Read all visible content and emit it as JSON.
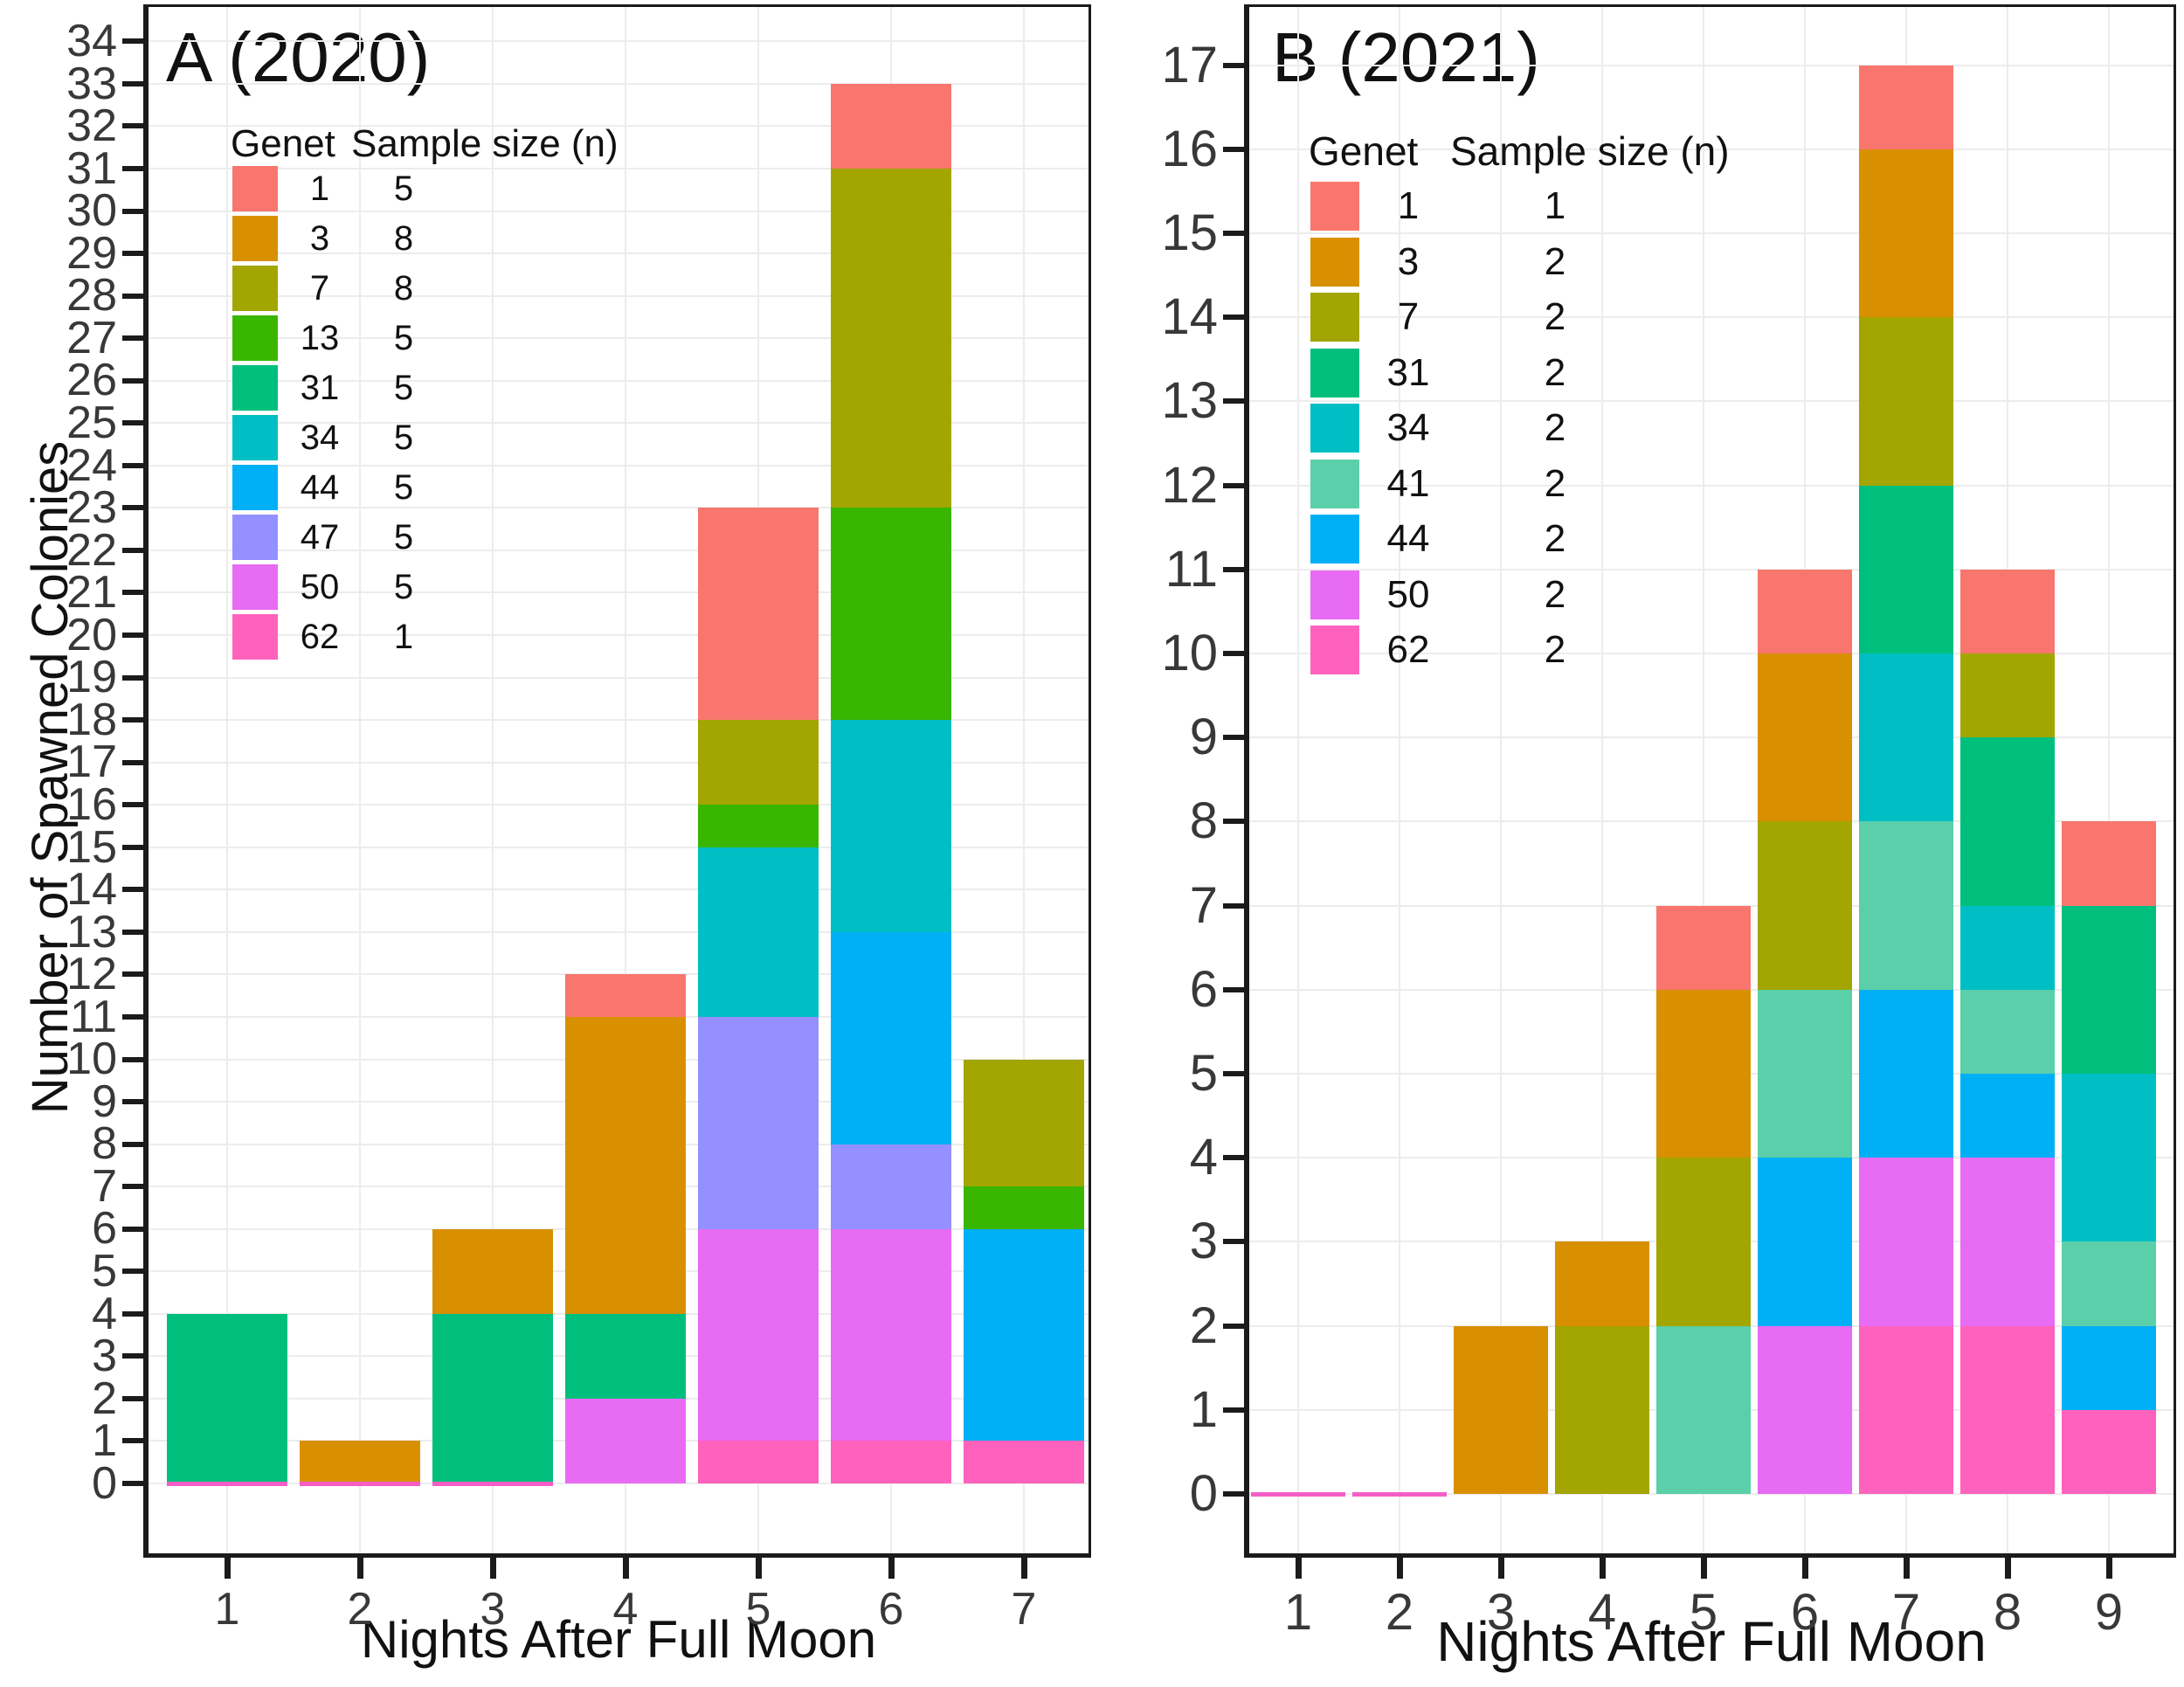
{
  "figure": {
    "y_axis_title": "Number of Spawned Colonies",
    "x_axis_title": "Nights After Full Moon"
  },
  "colors": {
    "background": "#FFFFFF",
    "axis": "#1B1B1B",
    "grid": "#ECECEC",
    "tick_label": "#383838",
    "zero_bar_line": "#F55EC6",
    "genet": {
      "1": "#F8766D",
      "3": "#D89000",
      "7": "#A3A500",
      "13": "#39B600",
      "31": "#00BF7D",
      "34": "#00BFC4",
      "41": "#5BCFA9",
      "44": "#00B0F6",
      "47": "#9590FF",
      "50": "#E76BF3",
      "62": "#FF62BC"
    }
  },
  "chart_data": [
    {
      "type": "bar",
      "stacked": true,
      "title": "A (2020)",
      "xlabel": "Nights After Full Moon",
      "ylabel": "Number of Spawned Colonies",
      "x_categories": [
        "1",
        "2",
        "3",
        "4",
        "5",
        "6",
        "7"
      ],
      "ylim": [
        0,
        34
      ],
      "ytick_step": 1,
      "grid": true,
      "legend_position": "inside top-left",
      "legend_header": {
        "genet": "Genet",
        "sample_size": "Sample size (n)"
      },
      "legend": [
        {
          "genet": "1",
          "n": "5"
        },
        {
          "genet": "3",
          "n": "8"
        },
        {
          "genet": "7",
          "n": "8"
        },
        {
          "genet": "13",
          "n": "5"
        },
        {
          "genet": "31",
          "n": "5"
        },
        {
          "genet": "34",
          "n": "5"
        },
        {
          "genet": "44",
          "n": "5"
        },
        {
          "genet": "47",
          "n": "5"
        },
        {
          "genet": "50",
          "n": "5"
        },
        {
          "genet": "62",
          "n": "1"
        }
      ],
      "stack_order_bottom_to_top": [
        "62",
        "50",
        "47",
        "44",
        "34",
        "31",
        "13",
        "7",
        "3",
        "1"
      ],
      "totals": [
        4,
        1,
        6,
        12,
        23,
        33,
        10
      ],
      "bars": [
        {
          "night": "1",
          "total": 4,
          "zero_height_outline": true,
          "segments": [
            {
              "genet": "31",
              "value": 4
            }
          ]
        },
        {
          "night": "2",
          "total": 1,
          "zero_height_outline": true,
          "segments": [
            {
              "genet": "3",
              "value": 1
            }
          ]
        },
        {
          "night": "3",
          "total": 6,
          "zero_height_outline": true,
          "segments": [
            {
              "genet": "31",
              "value": 4
            },
            {
              "genet": "3",
              "value": 2
            }
          ]
        },
        {
          "night": "4",
          "total": 12,
          "zero_height_outline": false,
          "segments": [
            {
              "genet": "50",
              "value": 2
            },
            {
              "genet": "31",
              "value": 2
            },
            {
              "genet": "3",
              "value": 7
            },
            {
              "genet": "1",
              "value": 1
            }
          ]
        },
        {
          "night": "5",
          "total": 23,
          "zero_height_outline": false,
          "segments": [
            {
              "genet": "62",
              "value": 1
            },
            {
              "genet": "50",
              "value": 5
            },
            {
              "genet": "47",
              "value": 5
            },
            {
              "genet": "34",
              "value": 4
            },
            {
              "genet": "13",
              "value": 1
            },
            {
              "genet": "7",
              "value": 2
            },
            {
              "genet": "1",
              "value": 5
            }
          ]
        },
        {
          "night": "6",
          "total": 33,
          "zero_height_outline": false,
          "segments": [
            {
              "genet": "62",
              "value": 1
            },
            {
              "genet": "50",
              "value": 5
            },
            {
              "genet": "47",
              "value": 2
            },
            {
              "genet": "44",
              "value": 5
            },
            {
              "genet": "34",
              "value": 5
            },
            {
              "genet": "13",
              "value": 5
            },
            {
              "genet": "7",
              "value": 8
            },
            {
              "genet": "1",
              "value": 2
            }
          ]
        },
        {
          "night": "7",
          "total": 10,
          "zero_height_outline": false,
          "segments": [
            {
              "genet": "62",
              "value": 1
            },
            {
              "genet": "44",
              "value": 5
            },
            {
              "genet": "13",
              "value": 1
            },
            {
              "genet": "7",
              "value": 3
            }
          ]
        }
      ]
    },
    {
      "type": "bar",
      "stacked": true,
      "title": "B (2021)",
      "xlabel": "Nights After Full Moon",
      "ylabel": "",
      "x_categories": [
        "1",
        "2",
        "3",
        "4",
        "5",
        "6",
        "7",
        "8",
        "9"
      ],
      "ylim": [
        0,
        17
      ],
      "ytick_step": 1,
      "grid": true,
      "legend_position": "inside top-left",
      "legend_header": {
        "genet": "Genet",
        "sample_size": "Sample size (n)"
      },
      "legend": [
        {
          "genet": "1",
          "n": "1"
        },
        {
          "genet": "3",
          "n": "2"
        },
        {
          "genet": "7",
          "n": "2"
        },
        {
          "genet": "31",
          "n": "2"
        },
        {
          "genet": "34",
          "n": "2"
        },
        {
          "genet": "41",
          "n": "2"
        },
        {
          "genet": "44",
          "n": "2"
        },
        {
          "genet": "50",
          "n": "2"
        },
        {
          "genet": "62",
          "n": "2"
        }
      ],
      "stack_order_bottom_to_top": [
        "62",
        "50",
        "44",
        "41",
        "34",
        "31",
        "7",
        "3",
        "1"
      ],
      "totals": [
        0,
        0,
        2,
        3,
        7,
        11,
        17,
        11,
        8
      ],
      "bars": [
        {
          "night": "1",
          "total": 0,
          "zero_height_outline": true,
          "segments": []
        },
        {
          "night": "2",
          "total": 0,
          "zero_height_outline": true,
          "segments": []
        },
        {
          "night": "3",
          "total": 2,
          "zero_height_outline": false,
          "segments": [
            {
              "genet": "3",
              "value": 2
            }
          ]
        },
        {
          "night": "4",
          "total": 3,
          "zero_height_outline": false,
          "segments": [
            {
              "genet": "7",
              "value": 2
            },
            {
              "genet": "3",
              "value": 1
            }
          ]
        },
        {
          "night": "5",
          "total": 7,
          "zero_height_outline": false,
          "segments": [
            {
              "genet": "41",
              "value": 2
            },
            {
              "genet": "7",
              "value": 2
            },
            {
              "genet": "3",
              "value": 2
            },
            {
              "genet": "1",
              "value": 1
            }
          ]
        },
        {
          "night": "6",
          "total": 11,
          "zero_height_outline": false,
          "segments": [
            {
              "genet": "50",
              "value": 2
            },
            {
              "genet": "44",
              "value": 2
            },
            {
              "genet": "41",
              "value": 2
            },
            {
              "genet": "7",
              "value": 2
            },
            {
              "genet": "3",
              "value": 2
            },
            {
              "genet": "1",
              "value": 1
            }
          ]
        },
        {
          "night": "7",
          "total": 17,
          "zero_height_outline": false,
          "segments": [
            {
              "genet": "62",
              "value": 2
            },
            {
              "genet": "50",
              "value": 2
            },
            {
              "genet": "44",
              "value": 2
            },
            {
              "genet": "41",
              "value": 2
            },
            {
              "genet": "34",
              "value": 2
            },
            {
              "genet": "31",
              "value": 2
            },
            {
              "genet": "7",
              "value": 2
            },
            {
              "genet": "3",
              "value": 2
            },
            {
              "genet": "1",
              "value": 1
            }
          ]
        },
        {
          "night": "8",
          "total": 11,
          "zero_height_outline": false,
          "segments": [
            {
              "genet": "62",
              "value": 2
            },
            {
              "genet": "50",
              "value": 2
            },
            {
              "genet": "44",
              "value": 1
            },
            {
              "genet": "41",
              "value": 1
            },
            {
              "genet": "34",
              "value": 1
            },
            {
              "genet": "31",
              "value": 2
            },
            {
              "genet": "7",
              "value": 1
            },
            {
              "genet": "1",
              "value": 1
            }
          ]
        },
        {
          "night": "9",
          "total": 8,
          "zero_height_outline": false,
          "segments": [
            {
              "genet": "62",
              "value": 1
            },
            {
              "genet": "44",
              "value": 1
            },
            {
              "genet": "41",
              "value": 1
            },
            {
              "genet": "34",
              "value": 2
            },
            {
              "genet": "31",
              "value": 2
            },
            {
              "genet": "1",
              "value": 1
            }
          ]
        }
      ]
    }
  ]
}
